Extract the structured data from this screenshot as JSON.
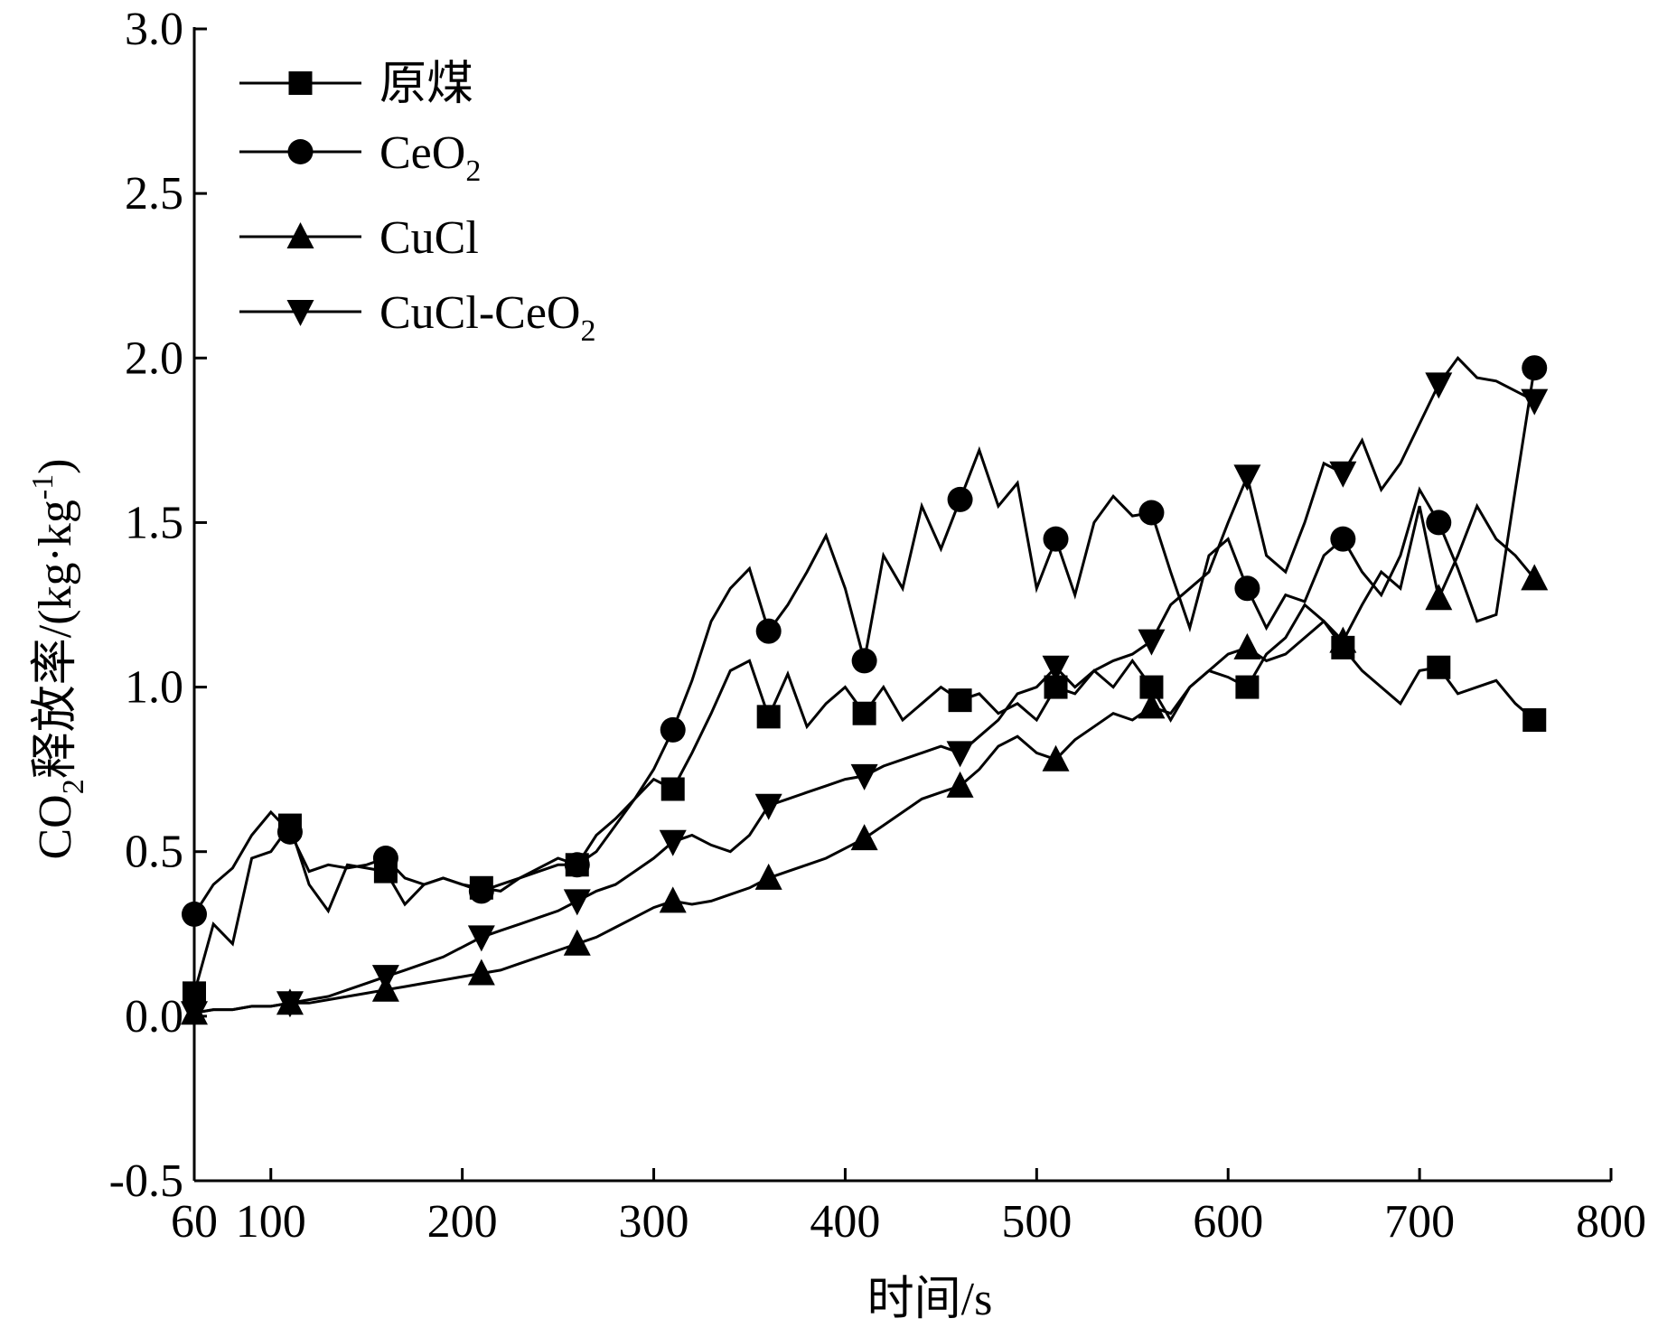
{
  "chart_data": {
    "type": "line",
    "title": "",
    "xlabel": "时间/s",
    "ylabel": "CO2释放率/(kg·kg-1)",
    "ylabel_parts": {
      "a": "CO",
      "sub": "2",
      "b": "释放率/(kg·kg",
      "sup": "-1",
      "c": ")"
    },
    "xlim": [
      60,
      800
    ],
    "ylim": [
      -0.5,
      3.0
    ],
    "x_ticks": [
      60,
      100,
      200,
      300,
      400,
      500,
      600,
      700,
      800
    ],
    "x_tick_labels": [
      "60",
      "100",
      "200",
      "300",
      "400",
      "500",
      "600",
      "700",
      "800"
    ],
    "y_ticks": [
      -0.5,
      0.0,
      0.5,
      1.0,
      1.5,
      2.0,
      2.5,
      3.0
    ],
    "y_tick_labels": [
      "-0.5",
      "0.0",
      "0.5",
      "1.0",
      "1.5",
      "2.0",
      "2.5",
      "3.0"
    ],
    "grid": false,
    "legend_position": "top-left",
    "series": [
      {
        "name": "原煤",
        "name_parts": {
          "main": "原煤",
          "sub": ""
        },
        "marker": "square",
        "x": [
          60,
          70,
          80,
          90,
          100,
          110,
          120,
          130,
          140,
          150,
          160,
          170,
          180,
          190,
          200,
          210,
          220,
          230,
          240,
          250,
          260,
          270,
          280,
          290,
          300,
          310,
          320,
          330,
          340,
          350,
          360,
          370,
          380,
          390,
          400,
          410,
          420,
          430,
          440,
          450,
          460,
          470,
          480,
          490,
          500,
          510,
          520,
          530,
          540,
          550,
          560,
          570,
          580,
          590,
          600,
          610,
          620,
          630,
          640,
          650,
          660,
          670,
          680,
          690,
          700,
          710,
          720,
          730,
          740,
          750,
          760
        ],
        "y": [
          0.07,
          0.28,
          0.22,
          0.48,
          0.5,
          0.58,
          0.4,
          0.32,
          0.46,
          0.45,
          0.44,
          0.34,
          0.4,
          0.42,
          0.4,
          0.39,
          0.38,
          0.42,
          0.45,
          0.48,
          0.46,
          0.55,
          0.6,
          0.66,
          0.72,
          0.69,
          0.8,
          0.92,
          1.05,
          1.08,
          0.91,
          1.04,
          0.88,
          0.95,
          1.0,
          0.92,
          1.0,
          0.9,
          0.95,
          1.0,
          0.96,
          0.98,
          0.92,
          0.95,
          0.9,
          1.0,
          0.98,
          1.05,
          1.0,
          1.08,
          1.0,
          0.9,
          1.0,
          1.05,
          1.03,
          1.0,
          1.1,
          1.15,
          1.25,
          1.2,
          1.12,
          1.05,
          1.0,
          0.95,
          1.05,
          1.06,
          0.98,
          1.0,
          1.02,
          0.95,
          0.9
        ]
      },
      {
        "name": "CeO2",
        "name_parts": {
          "main": "CeO",
          "sub": "2"
        },
        "marker": "circle",
        "x": [
          60,
          70,
          80,
          90,
          100,
          110,
          120,
          130,
          140,
          150,
          160,
          170,
          180,
          190,
          200,
          210,
          220,
          230,
          240,
          250,
          260,
          270,
          280,
          290,
          300,
          310,
          320,
          330,
          340,
          350,
          360,
          370,
          380,
          390,
          400,
          410,
          420,
          430,
          440,
          450,
          460,
          470,
          480,
          490,
          500,
          510,
          520,
          530,
          540,
          550,
          560,
          570,
          580,
          590,
          600,
          610,
          620,
          630,
          640,
          650,
          660,
          670,
          680,
          690,
          700,
          710,
          720,
          730,
          740,
          750,
          760
        ],
        "y": [
          0.31,
          0.4,
          0.45,
          0.55,
          0.62,
          0.56,
          0.44,
          0.46,
          0.45,
          0.46,
          0.48,
          0.42,
          0.4,
          0.42,
          0.4,
          0.38,
          0.4,
          0.42,
          0.44,
          0.46,
          0.46,
          0.5,
          0.58,
          0.66,
          0.75,
          0.87,
          1.02,
          1.2,
          1.3,
          1.36,
          1.17,
          1.25,
          1.35,
          1.46,
          1.3,
          1.08,
          1.4,
          1.3,
          1.55,
          1.42,
          1.57,
          1.72,
          1.55,
          1.62,
          1.3,
          1.45,
          1.28,
          1.5,
          1.58,
          1.52,
          1.53,
          1.35,
          1.18,
          1.4,
          1.45,
          1.3,
          1.18,
          1.28,
          1.26,
          1.4,
          1.45,
          1.35,
          1.28,
          1.4,
          1.6,
          1.5,
          1.36,
          1.2,
          1.22,
          1.6,
          1.97
        ]
      },
      {
        "name": "CuCl",
        "name_parts": {
          "main": "CuCl",
          "sub": ""
        },
        "marker": "triangle-up",
        "x": [
          60,
          70,
          80,
          90,
          100,
          110,
          120,
          130,
          140,
          150,
          160,
          170,
          180,
          190,
          200,
          210,
          220,
          230,
          240,
          250,
          260,
          270,
          280,
          290,
          300,
          310,
          320,
          330,
          340,
          350,
          360,
          370,
          380,
          390,
          400,
          410,
          420,
          430,
          440,
          450,
          460,
          470,
          480,
          490,
          500,
          510,
          520,
          530,
          540,
          550,
          560,
          570,
          580,
          590,
          600,
          610,
          620,
          630,
          640,
          650,
          660,
          670,
          680,
          690,
          700,
          710,
          720,
          730,
          740,
          750,
          760
        ],
        "y": [
          0.01,
          0.02,
          0.02,
          0.03,
          0.03,
          0.04,
          0.04,
          0.05,
          0.06,
          0.07,
          0.08,
          0.09,
          0.1,
          0.11,
          0.12,
          0.13,
          0.14,
          0.16,
          0.18,
          0.2,
          0.22,
          0.24,
          0.27,
          0.3,
          0.33,
          0.35,
          0.34,
          0.35,
          0.37,
          0.39,
          0.42,
          0.44,
          0.46,
          0.48,
          0.51,
          0.54,
          0.58,
          0.62,
          0.66,
          0.68,
          0.7,
          0.75,
          0.82,
          0.85,
          0.8,
          0.78,
          0.84,
          0.88,
          0.92,
          0.9,
          0.94,
          0.92,
          1.0,
          1.05,
          1.1,
          1.12,
          1.08,
          1.1,
          1.15,
          1.2,
          1.14,
          1.25,
          1.35,
          1.3,
          1.55,
          1.27,
          1.4,
          1.55,
          1.45,
          1.4,
          1.33
        ]
      },
      {
        "name": "CuCl-CeO2",
        "name_parts": {
          "main": "CuCl-CeO",
          "sub": "2"
        },
        "marker": "triangle-down",
        "x": [
          60,
          70,
          80,
          90,
          100,
          110,
          120,
          130,
          140,
          150,
          160,
          170,
          180,
          190,
          200,
          210,
          220,
          230,
          240,
          250,
          260,
          270,
          280,
          290,
          300,
          310,
          320,
          330,
          340,
          350,
          360,
          370,
          380,
          390,
          400,
          410,
          420,
          430,
          440,
          450,
          460,
          470,
          480,
          490,
          500,
          510,
          520,
          530,
          540,
          550,
          560,
          570,
          580,
          590,
          600,
          610,
          620,
          630,
          640,
          650,
          660,
          670,
          680,
          690,
          700,
          710,
          720,
          730,
          740,
          750,
          760
        ],
        "y": [
          0.01,
          0.02,
          0.02,
          0.03,
          0.03,
          0.04,
          0.05,
          0.06,
          0.08,
          0.1,
          0.12,
          0.14,
          0.16,
          0.18,
          0.21,
          0.24,
          0.26,
          0.28,
          0.3,
          0.32,
          0.35,
          0.38,
          0.4,
          0.44,
          0.48,
          0.53,
          0.55,
          0.52,
          0.5,
          0.55,
          0.64,
          0.66,
          0.68,
          0.7,
          0.72,
          0.73,
          0.76,
          0.78,
          0.8,
          0.82,
          0.8,
          0.85,
          0.9,
          0.98,
          1.0,
          1.06,
          1.0,
          1.05,
          1.08,
          1.1,
          1.14,
          1.25,
          1.3,
          1.35,
          1.5,
          1.64,
          1.4,
          1.35,
          1.5,
          1.68,
          1.65,
          1.75,
          1.6,
          1.68,
          1.8,
          1.92,
          2.0,
          1.94,
          1.93,
          1.9,
          1.87
        ]
      }
    ]
  }
}
